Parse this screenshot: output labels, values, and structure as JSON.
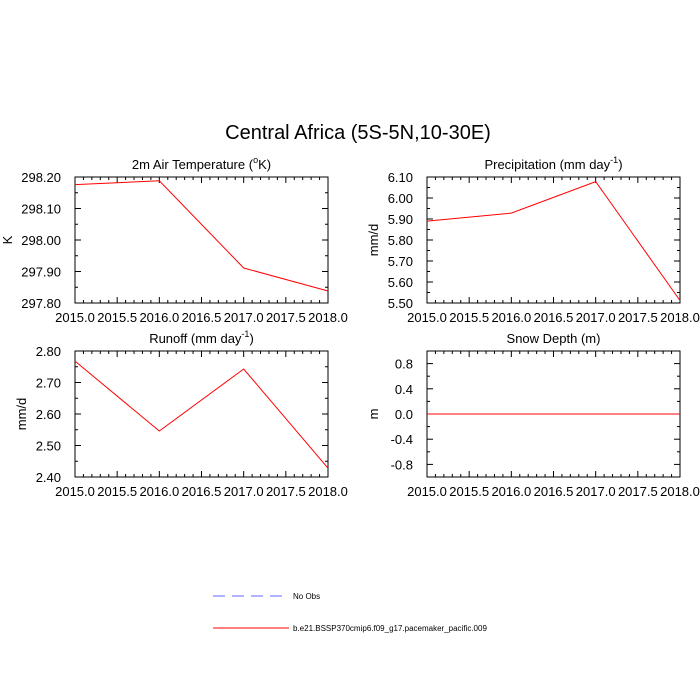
{
  "figure": {
    "title": "Central Africa (5S-5N,10-30E)"
  },
  "colors": {
    "model": "#ff0000",
    "obs": "#6666ff",
    "frame": "#000000"
  },
  "chart_data": [
    {
      "type": "line",
      "title": "2m Air Temperature (°K)",
      "title_parts": [
        "2m Air Temperature (",
        "o",
        "K)"
      ],
      "ylabel": "K",
      "x": [
        2015.0,
        2016.0,
        2017.0,
        2018.0
      ],
      "series": [
        {
          "name": "b.e21.BSSP370cmip6.f09_g17.pacemaker_pacific.009",
          "values": [
            298.176,
            298.188,
            297.911,
            297.838
          ]
        }
      ],
      "xlim": [
        2015.0,
        2018.0
      ],
      "ylim": [
        297.8,
        298.2
      ],
      "xticks": [
        "2015.0",
        "2015.5",
        "2016.0",
        "2016.5",
        "2017.0",
        "2017.5",
        "2018.0"
      ],
      "yticks": [
        297.8,
        297.9,
        298.0,
        298.1,
        298.2
      ],
      "ytick_labels": [
        "297.80",
        "297.90",
        "298.00",
        "298.10",
        "298.20"
      ]
    },
    {
      "type": "line",
      "title": "Precipitation (mm day⁻¹)",
      "title_parts": [
        "Precipitation (mm day",
        "-1",
        ")"
      ],
      "ylabel": "mm/d",
      "x": [
        2015.0,
        2016.0,
        2017.0,
        2018.0
      ],
      "series": [
        {
          "name": "b.e21.BSSP370cmip6.f09_g17.pacemaker_pacific.009",
          "values": [
            5.89,
            5.928,
            6.078,
            5.512
          ]
        }
      ],
      "xlim": [
        2015.0,
        2018.0
      ],
      "ylim": [
        5.5,
        6.1
      ],
      "xticks": [
        "2015.0",
        "2015.5",
        "2016.0",
        "2016.5",
        "2017.0",
        "2017.5",
        "2018.0"
      ],
      "yticks": [
        5.5,
        5.6,
        5.7,
        5.8,
        5.9,
        6.0,
        6.1
      ],
      "ytick_labels": [
        "5.50",
        "5.60",
        "5.70",
        "5.80",
        "5.90",
        "6.00",
        "6.10"
      ]
    },
    {
      "type": "line",
      "title": "Runoff (mm day⁻¹)",
      "title_parts": [
        "Runoff (mm day",
        "-1",
        ")"
      ],
      "ylabel": "mm/d",
      "x": [
        2015.0,
        2016.0,
        2017.0,
        2018.0
      ],
      "series": [
        {
          "name": "b.e21.BSSP370cmip6.f09_g17.pacemaker_pacific.009",
          "values": [
            2.768,
            2.546,
            2.743,
            2.428
          ]
        }
      ],
      "xlim": [
        2015.0,
        2018.0
      ],
      "ylim": [
        2.4,
        2.8
      ],
      "xticks": [
        "2015.0",
        "2015.5",
        "2016.0",
        "2016.5",
        "2017.0",
        "2017.5",
        "2018.0"
      ],
      "yticks": [
        2.4,
        2.5,
        2.6,
        2.7,
        2.8
      ],
      "ytick_labels": [
        "2.40",
        "2.50",
        "2.60",
        "2.70",
        "2.80"
      ]
    },
    {
      "type": "line",
      "title": "Snow Depth (m)",
      "title_parts": [
        "Snow Depth (m)",
        "",
        ""
      ],
      "ylabel": "m",
      "x": [
        2015.0,
        2016.0,
        2017.0,
        2018.0
      ],
      "series": [
        {
          "name": "b.e21.BSSP370cmip6.f09_g17.pacemaker_pacific.009",
          "values": [
            0.0,
            0.0,
            0.0,
            0.0
          ]
        }
      ],
      "xlim": [
        2015.0,
        2018.0
      ],
      "ylim": [
        -1.0,
        1.0
      ],
      "xticks": [
        "2015.0",
        "2015.5",
        "2016.0",
        "2016.5",
        "2017.0",
        "2017.5",
        "2018.0"
      ],
      "yticks": [
        -0.8,
        -0.4,
        0.0,
        0.4,
        0.8
      ],
      "ytick_labels": [
        "-0.8",
        "-0.4",
        "0.0",
        "0.4",
        "0.8"
      ]
    }
  ],
  "legend": [
    {
      "label": "No Obs",
      "style": "dashed",
      "color": "#6666ff"
    },
    {
      "label": "b.e21.BSSP370cmip6.f09_g17.pacemaker_pacific.009",
      "style": "solid",
      "color": "#ff0000"
    }
  ]
}
